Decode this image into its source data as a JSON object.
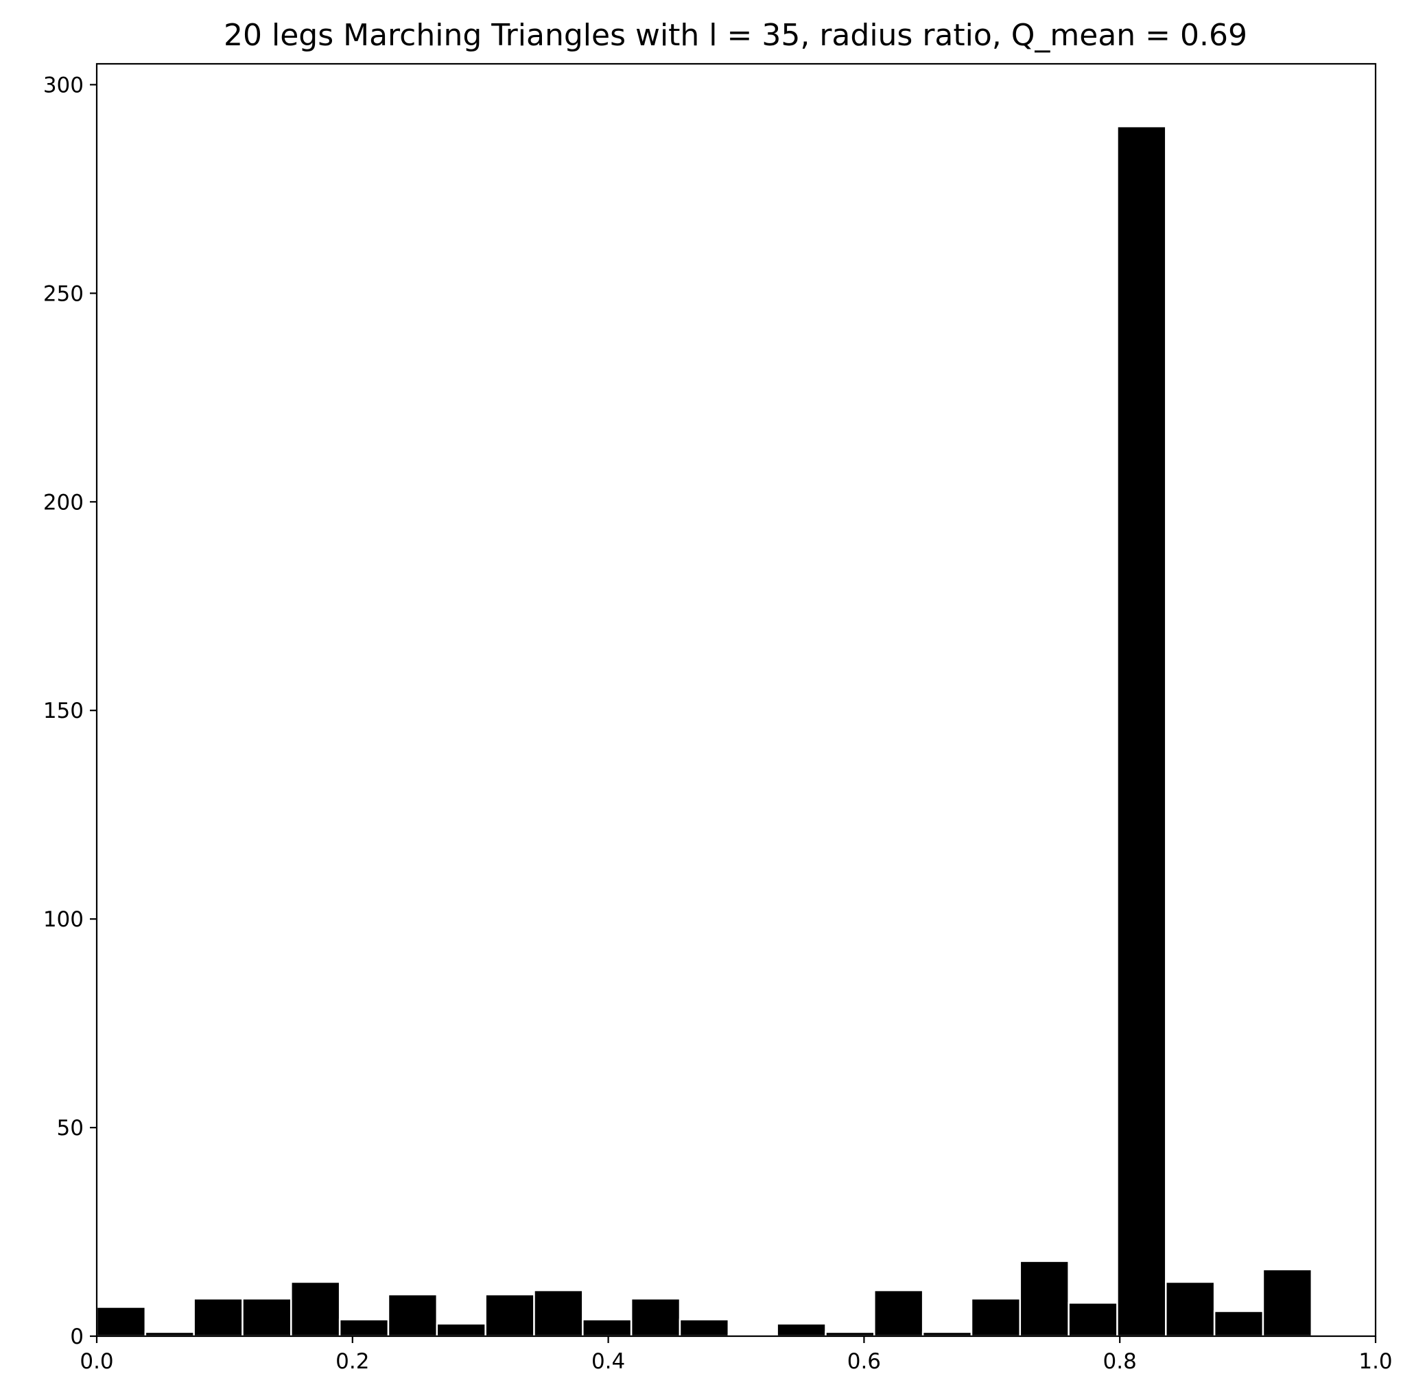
{
  "chart_data": {
    "type": "bar",
    "title": "20 legs Marching Triangles with l = 35, radius ratio, Q_mean = 0.69",
    "xlabel": "",
    "ylabel": "",
    "xlim": [
      0.0,
      1.0
    ],
    "ylim": [
      0,
      305
    ],
    "grid": false,
    "bar_color": "#000000",
    "bar_edge_color": "#ffffff",
    "bin_width": 0.038,
    "bins": [
      {
        "x0": 0.0,
        "x1": 0.038,
        "value": 7
      },
      {
        "x0": 0.038,
        "x1": 0.076,
        "value": 1
      },
      {
        "x0": 0.076,
        "x1": 0.114,
        "value": 9
      },
      {
        "x0": 0.114,
        "x1": 0.152,
        "value": 9
      },
      {
        "x0": 0.152,
        "x1": 0.19,
        "value": 13
      },
      {
        "x0": 0.19,
        "x1": 0.228,
        "value": 4
      },
      {
        "x0": 0.228,
        "x1": 0.266,
        "value": 10
      },
      {
        "x0": 0.266,
        "x1": 0.304,
        "value": 3
      },
      {
        "x0": 0.304,
        "x1": 0.342,
        "value": 10
      },
      {
        "x0": 0.342,
        "x1": 0.38,
        "value": 11
      },
      {
        "x0": 0.38,
        "x1": 0.418,
        "value": 4
      },
      {
        "x0": 0.418,
        "x1": 0.456,
        "value": 9
      },
      {
        "x0": 0.456,
        "x1": 0.494,
        "value": 4
      },
      {
        "x0": 0.494,
        "x1": 0.532,
        "value": 0.3
      },
      {
        "x0": 0.532,
        "x1": 0.57,
        "value": 3
      },
      {
        "x0": 0.57,
        "x1": 0.608,
        "value": 1
      },
      {
        "x0": 0.608,
        "x1": 0.646,
        "value": 11
      },
      {
        "x0": 0.646,
        "x1": 0.684,
        "value": 1
      },
      {
        "x0": 0.684,
        "x1": 0.722,
        "value": 9
      },
      {
        "x0": 0.722,
        "x1": 0.76,
        "value": 18
      },
      {
        "x0": 0.76,
        "x1": 0.798,
        "value": 8
      },
      {
        "x0": 0.798,
        "x1": 0.836,
        "value": 290
      },
      {
        "x0": 0.836,
        "x1": 0.874,
        "value": 13
      },
      {
        "x0": 0.874,
        "x1": 0.912,
        "value": 6
      },
      {
        "x0": 0.912,
        "x1": 0.95,
        "value": 16
      }
    ],
    "x_ticks": [
      {
        "value": 0.0,
        "label": "0.0"
      },
      {
        "value": 0.2,
        "label": "0.2"
      },
      {
        "value": 0.4,
        "label": "0.4"
      },
      {
        "value": 0.6,
        "label": "0.6"
      },
      {
        "value": 0.8,
        "label": "0.8"
      },
      {
        "value": 1.0,
        "label": "1.0"
      }
    ],
    "y_ticks": [
      {
        "value": 0,
        "label": "0"
      },
      {
        "value": 50,
        "label": "50"
      },
      {
        "value": 100,
        "label": "100"
      },
      {
        "value": 150,
        "label": "150"
      },
      {
        "value": 200,
        "label": "200"
      },
      {
        "value": 250,
        "label": "250"
      },
      {
        "value": 300,
        "label": "300"
      }
    ]
  }
}
